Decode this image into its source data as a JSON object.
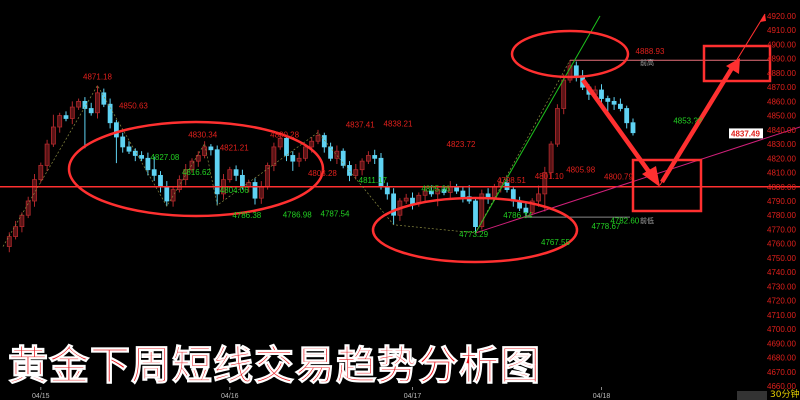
{
  "chart_data": {
    "type": "candlestick",
    "timeframe": "30分钟",
    "ylim": [
      4660,
      4920
    ],
    "y_ticks": [
      "4920.00",
      "4910.00",
      "4900.00",
      "4890.00",
      "4880.00",
      "4870.00",
      "4860.00",
      "4850.00",
      "4840.00",
      "4830.00",
      "4820.00",
      "4810.00",
      "4800.00",
      "4790.00",
      "4780.00",
      "4770.00",
      "4760.00",
      "4750.00",
      "4740.00",
      "4730.00",
      "4720.00",
      "4710.00",
      "4700.00",
      "4690.00",
      "4680.00",
      "4670.00",
      "4660.00"
    ],
    "x_ticks": [
      {
        "label": "04/15",
        "index": 6
      },
      {
        "label": "04/16",
        "index": 36
      },
      {
        "label": "04/17",
        "index": 65
      },
      {
        "label": "04/18",
        "index": 95
      }
    ],
    "closes": [
      4758,
      4765,
      4772,
      4780,
      4790,
      4805,
      4815,
      4830,
      4842,
      4850,
      4848,
      4856,
      4860,
      4855,
      4852,
      4866,
      4858,
      4845,
      4835,
      4828,
      4825,
      4822,
      4820,
      4812,
      4808,
      4800,
      4790,
      4798,
      4805,
      4812,
      4818,
      4822,
      4828,
      4826,
      4795,
      4805,
      4812,
      4808,
      4800,
      4803,
      4792,
      4800,
      4815,
      4828,
      4834,
      4822,
      4818,
      4820,
      4828,
      4832,
      4836,
      4828,
      4820,
      4825,
      4815,
      4808,
      4812,
      4818,
      4822,
      4820,
      4800,
      4795,
      4780,
      4790,
      4792,
      4788,
      4794,
      4797,
      4795,
      4798,
      4796,
      4800,
      4797,
      4793,
      4790,
      4772,
      4795,
      4792,
      4800,
      4803,
      4798,
      4790,
      4785,
      4782,
      4790,
      4795,
      4810,
      4830,
      4855,
      4875,
      4885,
      4878,
      4870,
      4865,
      4868,
      4862,
      4860,
      4858,
      4855,
      4845,
      4838
    ],
    "current_price": "4837.49",
    "pivot_labels": [
      {
        "text": "4871.18",
        "index": 15,
        "value": 4871.18,
        "kind": "high"
      },
      {
        "text": "4850.63",
        "index": 8,
        "value": 4850.63,
        "kind": "high"
      },
      {
        "text": "4830.34",
        "index": 19,
        "value": 4830.34,
        "kind": "high"
      },
      {
        "text": "4827.08",
        "index": 13,
        "value": 4827.08,
        "kind": "low"
      },
      {
        "text": "4821.21",
        "index": 24,
        "value": 4821.21,
        "kind": "high"
      },
      {
        "text": "4816.62",
        "index": 18,
        "value": 4816.62,
        "kind": "low"
      },
      {
        "text": "4804.06",
        "index": 24,
        "value": 4804.06,
        "kind": "low"
      },
      {
        "text": "4786.38",
        "index": 26,
        "value": 4786.38,
        "kind": "low"
      },
      {
        "text": "4830.28",
        "index": 32,
        "value": 4830.28,
        "kind": "high"
      },
      {
        "text": "4786.98",
        "index": 34,
        "value": 4786.98,
        "kind": "low"
      },
      {
        "text": "4803.28",
        "index": 38,
        "value": 4803.28,
        "kind": "high"
      },
      {
        "text": "4787.54",
        "index": 40,
        "value": 4787.54,
        "kind": "low"
      },
      {
        "text": "4837.41",
        "index": 44,
        "value": 4837.41,
        "kind": "high"
      },
      {
        "text": "4811.17",
        "index": 46,
        "value": 4811.17,
        "kind": "low"
      },
      {
        "text": "4838.21",
        "index": 50,
        "value": 4838.21,
        "kind": "high"
      },
      {
        "text": "4805.06",
        "index": 56,
        "value": 4805.06,
        "kind": "low"
      },
      {
        "text": "4823.72",
        "index": 60,
        "value": 4823.72,
        "kind": "high"
      },
      {
        "text": "4773.29",
        "index": 62,
        "value": 4773.29,
        "kind": "low"
      },
      {
        "text": "4798.51",
        "index": 68,
        "value": 4798.51,
        "kind": "high"
      },
      {
        "text": "4786.34",
        "index": 69,
        "value": 4786.34,
        "kind": "low"
      },
      {
        "text": "4801.10",
        "index": 74,
        "value": 4801.1,
        "kind": "high"
      },
      {
        "text": "4767.55",
        "index": 75,
        "value": 4767.55,
        "kind": "low"
      },
      {
        "text": "4805.98",
        "index": 79,
        "value": 4805.98,
        "kind": "high"
      },
      {
        "text": "4778.67",
        "index": 83,
        "value": 4778.67,
        "kind": "low"
      },
      {
        "text": "4800.79",
        "index": 85,
        "value": 4800.79,
        "kind": "high"
      },
      {
        "text": "4782.60",
        "index": 86,
        "value": 4782.6,
        "kind": "low"
      },
      {
        "text": "4888.93",
        "index": 90,
        "value": 4888.93,
        "kind": "high"
      },
      {
        "text": "4853.??",
        "index": 96,
        "value": 4853,
        "kind": "low"
      }
    ],
    "horizontal_line": 4800,
    "prev_high_label": "前高",
    "prev_low_label": "前低",
    "colors": {
      "up": "#b0282c",
      "down": "#5fd3f3",
      "high_label": "#e0201c",
      "low_label": "#22d022",
      "axis": "#e0201c",
      "annotation": "#ff3030"
    }
  },
  "title": "黄金下周短线交易趋势分析图"
}
